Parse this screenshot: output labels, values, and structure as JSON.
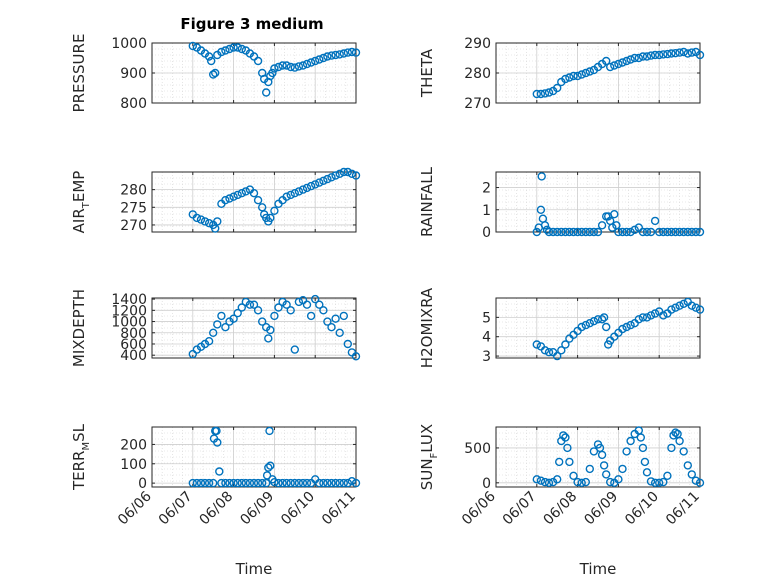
{
  "figure_title": "Figure 3 medium",
  "colors": {
    "marker": "#0072BD",
    "axis": "#262626",
    "grid": "#d4d4d4"
  },
  "x_ticks": [
    "06/06",
    "06/07",
    "06/08",
    "06/09",
    "06/10",
    "06/11"
  ],
  "x_label": "Time",
  "chart_data": [
    {
      "type": "scatter",
      "title": "Figure 3 medium",
      "ylabel": "PRESSURE",
      "ylabel_main": "PRESSURE",
      "ylabel_sub": "",
      "ylabel_tail": "",
      "xlabel": "",
      "xlim": [
        0,
        5
      ],
      "ylim": [
        800,
        1000
      ],
      "yticks": [
        800,
        900,
        1000
      ],
      "x": [
        1.0,
        1.1,
        1.2,
        1.3,
        1.4,
        1.45,
        1.5,
        1.55,
        1.6,
        1.7,
        1.8,
        1.9,
        2.0,
        2.1,
        2.2,
        2.3,
        2.4,
        2.5,
        2.6,
        2.7,
        2.75,
        2.8,
        2.85,
        2.9,
        2.95,
        3.0,
        3.1,
        3.2,
        3.3,
        3.4,
        3.5,
        3.6,
        3.7,
        3.8,
        3.9,
        4.0,
        4.1,
        4.2,
        4.3,
        4.4,
        4.5,
        4.6,
        4.7,
        4.8,
        4.9,
        5.0
      ],
      "y": [
        990,
        985,
        975,
        965,
        955,
        940,
        895,
        900,
        960,
        970,
        975,
        980,
        985,
        985,
        980,
        975,
        965,
        955,
        940,
        900,
        880,
        835,
        870,
        890,
        900,
        915,
        920,
        925,
        925,
        920,
        918,
        922,
        925,
        930,
        935,
        940,
        945,
        950,
        955,
        958,
        960,
        962,
        965,
        968,
        970,
        968
      ]
    },
    {
      "type": "scatter",
      "ylabel": "THETA",
      "ylabel_main": "THETA",
      "ylabel_sub": "",
      "ylabel_tail": "",
      "xlim": [
        0,
        5
      ],
      "ylim": [
        270,
        290
      ],
      "yticks": [
        270,
        280,
        290
      ],
      "x": [
        1.0,
        1.1,
        1.2,
        1.3,
        1.4,
        1.5,
        1.6,
        1.7,
        1.8,
        1.9,
        2.0,
        2.1,
        2.2,
        2.3,
        2.4,
        2.5,
        2.6,
        2.7,
        2.8,
        2.9,
        3.0,
        3.1,
        3.2,
        3.3,
        3.4,
        3.5,
        3.6,
        3.7,
        3.8,
        3.9,
        4.0,
        4.1,
        4.2,
        4.3,
        4.4,
        4.5,
        4.6,
        4.7,
        4.8,
        4.9,
        5.0
      ],
      "y": [
        273,
        273,
        273.2,
        273.5,
        274,
        275,
        277,
        278,
        278.5,
        279,
        279,
        279.5,
        280,
        280.5,
        281,
        282,
        283,
        284,
        282,
        282.5,
        283,
        283.5,
        284,
        284.5,
        285,
        285,
        285.5,
        285.5,
        285.8,
        286,
        286,
        286.2,
        286.3,
        286.5,
        286.6,
        286.8,
        287,
        286.5,
        286.8,
        287,
        286
      ]
    },
    {
      "type": "scatter",
      "ylabel": "AIR_TEMP",
      "ylabel_main": "AIR",
      "ylabel_sub": "T",
      "ylabel_tail": "EMP",
      "xlim": [
        0,
        5
      ],
      "ylim": [
        268,
        285
      ],
      "yticks": [
        270,
        275,
        280
      ],
      "x": [
        1.0,
        1.1,
        1.2,
        1.3,
        1.4,
        1.5,
        1.55,
        1.6,
        1.7,
        1.8,
        1.9,
        2.0,
        2.1,
        2.2,
        2.3,
        2.4,
        2.5,
        2.6,
        2.7,
        2.75,
        2.8,
        2.85,
        2.9,
        3.0,
        3.1,
        3.2,
        3.3,
        3.4,
        3.5,
        3.6,
        3.7,
        3.8,
        3.9,
        4.0,
        4.1,
        4.2,
        4.3,
        4.4,
        4.5,
        4.6,
        4.7,
        4.8,
        4.9,
        5.0
      ],
      "y": [
        273,
        272,
        271.5,
        271,
        270.5,
        270,
        269,
        271,
        276,
        277,
        277.5,
        278,
        278.5,
        279,
        279.5,
        280,
        279,
        277,
        275,
        273,
        272,
        271,
        272,
        274,
        276,
        277,
        278,
        278.5,
        279,
        279.5,
        280,
        280.5,
        281,
        281.5,
        282,
        282.5,
        283,
        283.5,
        284,
        284.5,
        285,
        285,
        284.5,
        284
      ]
    },
    {
      "type": "scatter",
      "ylabel": "RAINFALL",
      "ylabel_main": "RAINFALL",
      "ylabel_sub": "",
      "ylabel_tail": "",
      "xlim": [
        0,
        5
      ],
      "ylim": [
        0,
        2.7
      ],
      "yticks": [
        0,
        1,
        2
      ],
      "x": [
        1.0,
        1.05,
        1.1,
        1.12,
        1.15,
        1.2,
        1.25,
        1.3,
        1.4,
        1.5,
        1.6,
        1.7,
        1.8,
        1.9,
        2.0,
        2.1,
        2.2,
        2.3,
        2.4,
        2.5,
        2.6,
        2.7,
        2.75,
        2.8,
        2.85,
        2.9,
        2.95,
        3.0,
        3.1,
        3.2,
        3.3,
        3.4,
        3.5,
        3.6,
        3.7,
        3.8,
        3.9,
        4.0,
        4.1,
        4.2,
        4.3,
        4.4,
        4.5,
        4.6,
        4.7,
        4.8,
        4.9,
        5.0
      ],
      "y": [
        0,
        0.2,
        1.0,
        2.5,
        0.6,
        0.3,
        0.1,
        0,
        0,
        0,
        0,
        0,
        0,
        0,
        0,
        0,
        0,
        0,
        0,
        0,
        0.3,
        0.7,
        0.7,
        0.5,
        0.2,
        0.8,
        0.3,
        0,
        0,
        0,
        0,
        0.1,
        0.2,
        0,
        0,
        0,
        0.5,
        0,
        0,
        0,
        0,
        0,
        0,
        0,
        0,
        0,
        0,
        0
      ]
    },
    {
      "type": "scatter",
      "ylabel": "MIXDEPTH",
      "ylabel_main": "MIXDEPTH",
      "ylabel_sub": "",
      "ylabel_tail": "",
      "xlim": [
        0,
        5
      ],
      "ylim": [
        350,
        1420
      ],
      "yticks": [
        400,
        600,
        800,
        1000,
        1200,
        1400
      ],
      "x": [
        1.0,
        1.1,
        1.2,
        1.3,
        1.4,
        1.5,
        1.6,
        1.7,
        1.8,
        1.9,
        2.0,
        2.1,
        2.2,
        2.3,
        2.4,
        2.5,
        2.6,
        2.7,
        2.8,
        2.85,
        2.9,
        3.0,
        3.1,
        3.2,
        3.3,
        3.4,
        3.5,
        3.6,
        3.7,
        3.8,
        3.9,
        4.0,
        4.1,
        4.2,
        4.3,
        4.4,
        4.5,
        4.6,
        4.7,
        4.8,
        4.9,
        5.0
      ],
      "y": [
        420,
        500,
        550,
        600,
        650,
        800,
        950,
        1100,
        900,
        1000,
        1050,
        1150,
        1250,
        1350,
        1300,
        1300,
        1200,
        1000,
        900,
        700,
        850,
        1100,
        1250,
        1350,
        1300,
        1200,
        500,
        1350,
        1380,
        1300,
        1100,
        1400,
        1300,
        1200,
        1000,
        900,
        1050,
        800,
        1100,
        600,
        450,
        380
      ]
    },
    {
      "type": "scatter",
      "ylabel": "H2OMIXRA",
      "ylabel_main": "H2OMIXRA",
      "ylabel_sub": "",
      "ylabel_tail": "",
      "xlim": [
        0,
        5
      ],
      "ylim": [
        2.9,
        6.0
      ],
      "yticks": [
        3,
        4,
        5
      ],
      "x": [
        1.0,
        1.1,
        1.2,
        1.3,
        1.4,
        1.5,
        1.6,
        1.7,
        1.8,
        1.9,
        2.0,
        2.1,
        2.2,
        2.3,
        2.4,
        2.5,
        2.6,
        2.65,
        2.7,
        2.75,
        2.8,
        2.9,
        3.0,
        3.1,
        3.2,
        3.3,
        3.4,
        3.5,
        3.6,
        3.7,
        3.8,
        3.9,
        4.0,
        4.1,
        4.2,
        4.3,
        4.4,
        4.5,
        4.6,
        4.7,
        4.8,
        4.9,
        5.0
      ],
      "y": [
        3.6,
        3.5,
        3.3,
        3.2,
        3.2,
        3.0,
        3.3,
        3.6,
        3.9,
        4.1,
        4.3,
        4.5,
        4.6,
        4.7,
        4.8,
        4.9,
        4.9,
        5.0,
        4.5,
        3.6,
        3.8,
        4.0,
        4.2,
        4.4,
        4.5,
        4.6,
        4.7,
        4.9,
        5.0,
        5.0,
        5.1,
        5.2,
        5.3,
        5.1,
        5.2,
        5.4,
        5.5,
        5.6,
        5.7,
        5.8,
        5.6,
        5.5,
        5.4
      ]
    },
    {
      "type": "scatter",
      "ylabel": "TERR_MSL",
      "ylabel_main": "TERR",
      "ylabel_sub": "M",
      "ylabel_tail": "SL",
      "xlabel": "Time",
      "xlim": [
        0,
        5
      ],
      "ylim": [
        -20,
        290
      ],
      "yticks": [
        0,
        100,
        200
      ],
      "x": [
        1.0,
        1.1,
        1.2,
        1.3,
        1.4,
        1.5,
        1.52,
        1.55,
        1.58,
        1.6,
        1.65,
        1.7,
        1.8,
        1.9,
        2.0,
        2.1,
        2.2,
        2.3,
        2.4,
        2.5,
        2.6,
        2.7,
        2.8,
        2.82,
        2.85,
        2.88,
        2.9,
        2.95,
        3.0,
        3.1,
        3.2,
        3.3,
        3.4,
        3.5,
        3.6,
        3.7,
        3.8,
        3.9,
        4.0,
        4.1,
        4.2,
        4.3,
        4.4,
        4.5,
        4.6,
        4.7,
        4.8,
        4.9,
        5.0
      ],
      "y": [
        0,
        0,
        0,
        0,
        0,
        0,
        230,
        270,
        270,
        210,
        60,
        0,
        0,
        0,
        0,
        0,
        0,
        0,
        0,
        0,
        0,
        0,
        0,
        40,
        80,
        270,
        90,
        20,
        5,
        0,
        0,
        0,
        0,
        0,
        0,
        0,
        0,
        0,
        20,
        0,
        0,
        0,
        0,
        0,
        0,
        0,
        0,
        10,
        0
      ]
    },
    {
      "type": "scatter",
      "ylabel": "SUN_FLUX",
      "ylabel_main": "SUN",
      "ylabel_sub": "F",
      "ylabel_tail": "LUX",
      "xlabel": "Time",
      "xlim": [
        0,
        5
      ],
      "ylim": [
        -60,
        800
      ],
      "yticks": [
        0,
        500
      ],
      "x": [
        1.0,
        1.1,
        1.2,
        1.3,
        1.4,
        1.5,
        1.55,
        1.6,
        1.65,
        1.7,
        1.75,
        1.8,
        1.9,
        2.0,
        2.1,
        2.2,
        2.3,
        2.4,
        2.5,
        2.55,
        2.6,
        2.65,
        2.7,
        2.8,
        2.9,
        3.0,
        3.1,
        3.2,
        3.3,
        3.4,
        3.5,
        3.55,
        3.6,
        3.65,
        3.7,
        3.8,
        3.9,
        4.0,
        4.1,
        4.2,
        4.3,
        4.35,
        4.4,
        4.45,
        4.5,
        4.6,
        4.7,
        4.8,
        4.9,
        5.0
      ],
      "y": [
        50,
        30,
        10,
        0,
        10,
        50,
        300,
        600,
        680,
        650,
        500,
        300,
        100,
        10,
        0,
        10,
        200,
        450,
        550,
        500,
        400,
        250,
        120,
        10,
        0,
        50,
        200,
        450,
        600,
        700,
        750,
        650,
        500,
        300,
        150,
        20,
        0,
        0,
        10,
        100,
        500,
        680,
        720,
        700,
        600,
        450,
        250,
        120,
        30,
        0
      ]
    }
  ]
}
